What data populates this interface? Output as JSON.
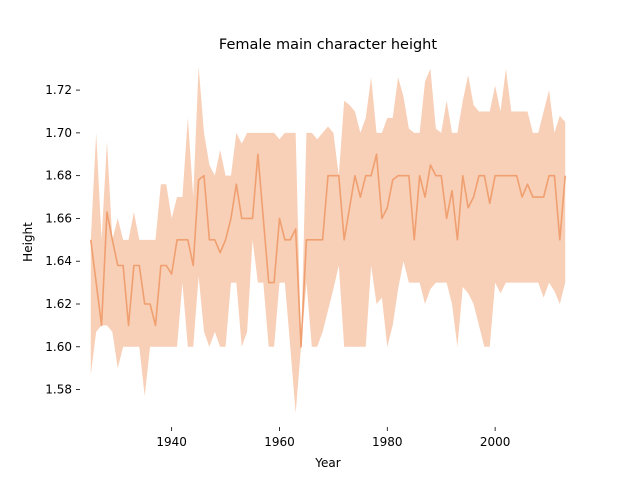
{
  "chart_data": {
    "type": "line",
    "title": "Female main character height",
    "xlabel": "Year",
    "ylabel": "Height",
    "xlim": [
      1923,
      2015
    ],
    "ylim": [
      1.5625,
      1.735
    ],
    "xticks": [
      1940,
      1960,
      1980,
      2000
    ],
    "xtick_labels": [
      "1940",
      "1960",
      "1980",
      "2000"
    ],
    "yticks": [
      1.58,
      1.6,
      1.62,
      1.64,
      1.66,
      1.68,
      1.7,
      1.72
    ],
    "ytick_labels": [
      "1.58",
      "1.60",
      "1.62",
      "1.64",
      "1.66",
      "1.68",
      "1.70",
      "1.72"
    ],
    "grid": false,
    "line_color": "#f0a070",
    "band_color": "#f5b590",
    "series": [
      {
        "x": [
          1925,
          1926,
          1927,
          1928,
          1929,
          1930,
          1931,
          1932,
          1933,
          1934,
          1935,
          1936,
          1937,
          1938,
          1939,
          1940,
          1941,
          1942,
          1943,
          1944,
          1945,
          1946,
          1947,
          1948,
          1949,
          1950,
          1951,
          1952,
          1953,
          1954,
          1955,
          1956,
          1957,
          1958,
          1959,
          1960,
          1961,
          1962,
          1963,
          1964,
          1965,
          1966,
          1967,
          1968,
          1969,
          1970,
          1971,
          1972,
          1973,
          1974,
          1975,
          1976,
          1977,
          1978,
          1979,
          1980,
          1981,
          1982,
          1983,
          1984,
          1985,
          1986,
          1987,
          1988,
          1989,
          1990,
          1991,
          1992,
          1993,
          1994,
          1995,
          1996,
          1997,
          1998,
          1999,
          2000,
          2001,
          2002,
          2003,
          2004,
          2005,
          2006,
          2007,
          2008,
          2009,
          2010,
          2011,
          2012,
          2013
        ],
        "y": [
          1.65,
          1.63,
          1.61,
          1.663,
          1.65,
          1.638,
          1.638,
          1.61,
          1.638,
          1.638,
          1.62,
          1.62,
          1.61,
          1.638,
          1.638,
          1.634,
          1.65,
          1.65,
          1.65,
          1.638,
          1.678,
          1.68,
          1.65,
          1.65,
          1.644,
          1.65,
          1.66,
          1.676,
          1.66,
          1.66,
          1.66,
          1.69,
          1.66,
          1.63,
          1.63,
          1.66,
          1.65,
          1.65,
          1.655,
          1.6,
          1.65,
          1.65,
          1.65,
          1.65,
          1.68,
          1.68,
          1.68,
          1.65,
          1.665,
          1.68,
          1.67,
          1.68,
          1.68,
          1.69,
          1.66,
          1.665,
          1.678,
          1.68,
          1.68,
          1.68,
          1.65,
          1.68,
          1.67,
          1.685,
          1.68,
          1.68,
          1.66,
          1.673,
          1.65,
          1.68,
          1.665,
          1.67,
          1.68,
          1.68,
          1.667,
          1.68,
          1.68,
          1.68,
          1.68,
          1.68,
          1.67,
          1.676,
          1.67,
          1.67,
          1.67,
          1.68,
          1.68,
          1.65,
          1.68
        ],
        "lower": [
          1.587,
          1.607,
          1.61,
          1.61,
          1.607,
          1.59,
          1.6,
          1.6,
          1.6,
          1.6,
          1.577,
          1.6,
          1.6,
          1.6,
          1.6,
          1.6,
          1.6,
          1.63,
          1.6,
          1.6,
          1.633,
          1.607,
          1.6,
          1.607,
          1.6,
          1.6,
          1.63,
          1.63,
          1.6,
          1.607,
          1.65,
          1.63,
          1.63,
          1.6,
          1.6,
          1.63,
          1.63,
          1.6,
          1.569,
          1.6,
          1.63,
          1.6,
          1.6,
          1.607,
          1.617,
          1.627,
          1.638,
          1.6,
          1.6,
          1.6,
          1.6,
          1.6,
          1.638,
          1.62,
          1.623,
          1.6,
          1.61,
          1.627,
          1.64,
          1.63,
          1.63,
          1.63,
          1.62,
          1.627,
          1.63,
          1.63,
          1.63,
          1.62,
          1.6,
          1.628,
          1.625,
          1.62,
          1.61,
          1.6,
          1.6,
          1.63,
          1.625,
          1.63,
          1.63,
          1.63,
          1.63,
          1.63,
          1.63,
          1.63,
          1.623,
          1.63,
          1.626,
          1.62,
          1.63
        ],
        "upper": [
          1.65,
          1.7,
          1.65,
          1.696,
          1.65,
          1.66,
          1.65,
          1.65,
          1.663,
          1.65,
          1.65,
          1.65,
          1.65,
          1.676,
          1.676,
          1.66,
          1.67,
          1.67,
          1.707,
          1.67,
          1.731,
          1.7,
          1.685,
          1.68,
          1.692,
          1.68,
          1.68,
          1.7,
          1.695,
          1.7,
          1.7,
          1.7,
          1.7,
          1.7,
          1.7,
          1.697,
          1.7,
          1.7,
          1.7,
          1.6,
          1.7,
          1.7,
          1.697,
          1.7,
          1.703,
          1.7,
          1.68,
          1.715,
          1.713,
          1.71,
          1.7,
          1.707,
          1.726,
          1.7,
          1.7,
          1.707,
          1.707,
          1.726,
          1.717,
          1.702,
          1.7,
          1.7,
          1.724,
          1.73,
          1.702,
          1.7,
          1.715,
          1.7,
          1.7,
          1.715,
          1.727,
          1.713,
          1.71,
          1.71,
          1.71,
          1.722,
          1.71,
          1.73,
          1.71,
          1.71,
          1.71,
          1.71,
          1.7,
          1.7,
          1.71,
          1.72,
          1.7,
          1.708,
          1.705
        ]
      }
    ]
  }
}
